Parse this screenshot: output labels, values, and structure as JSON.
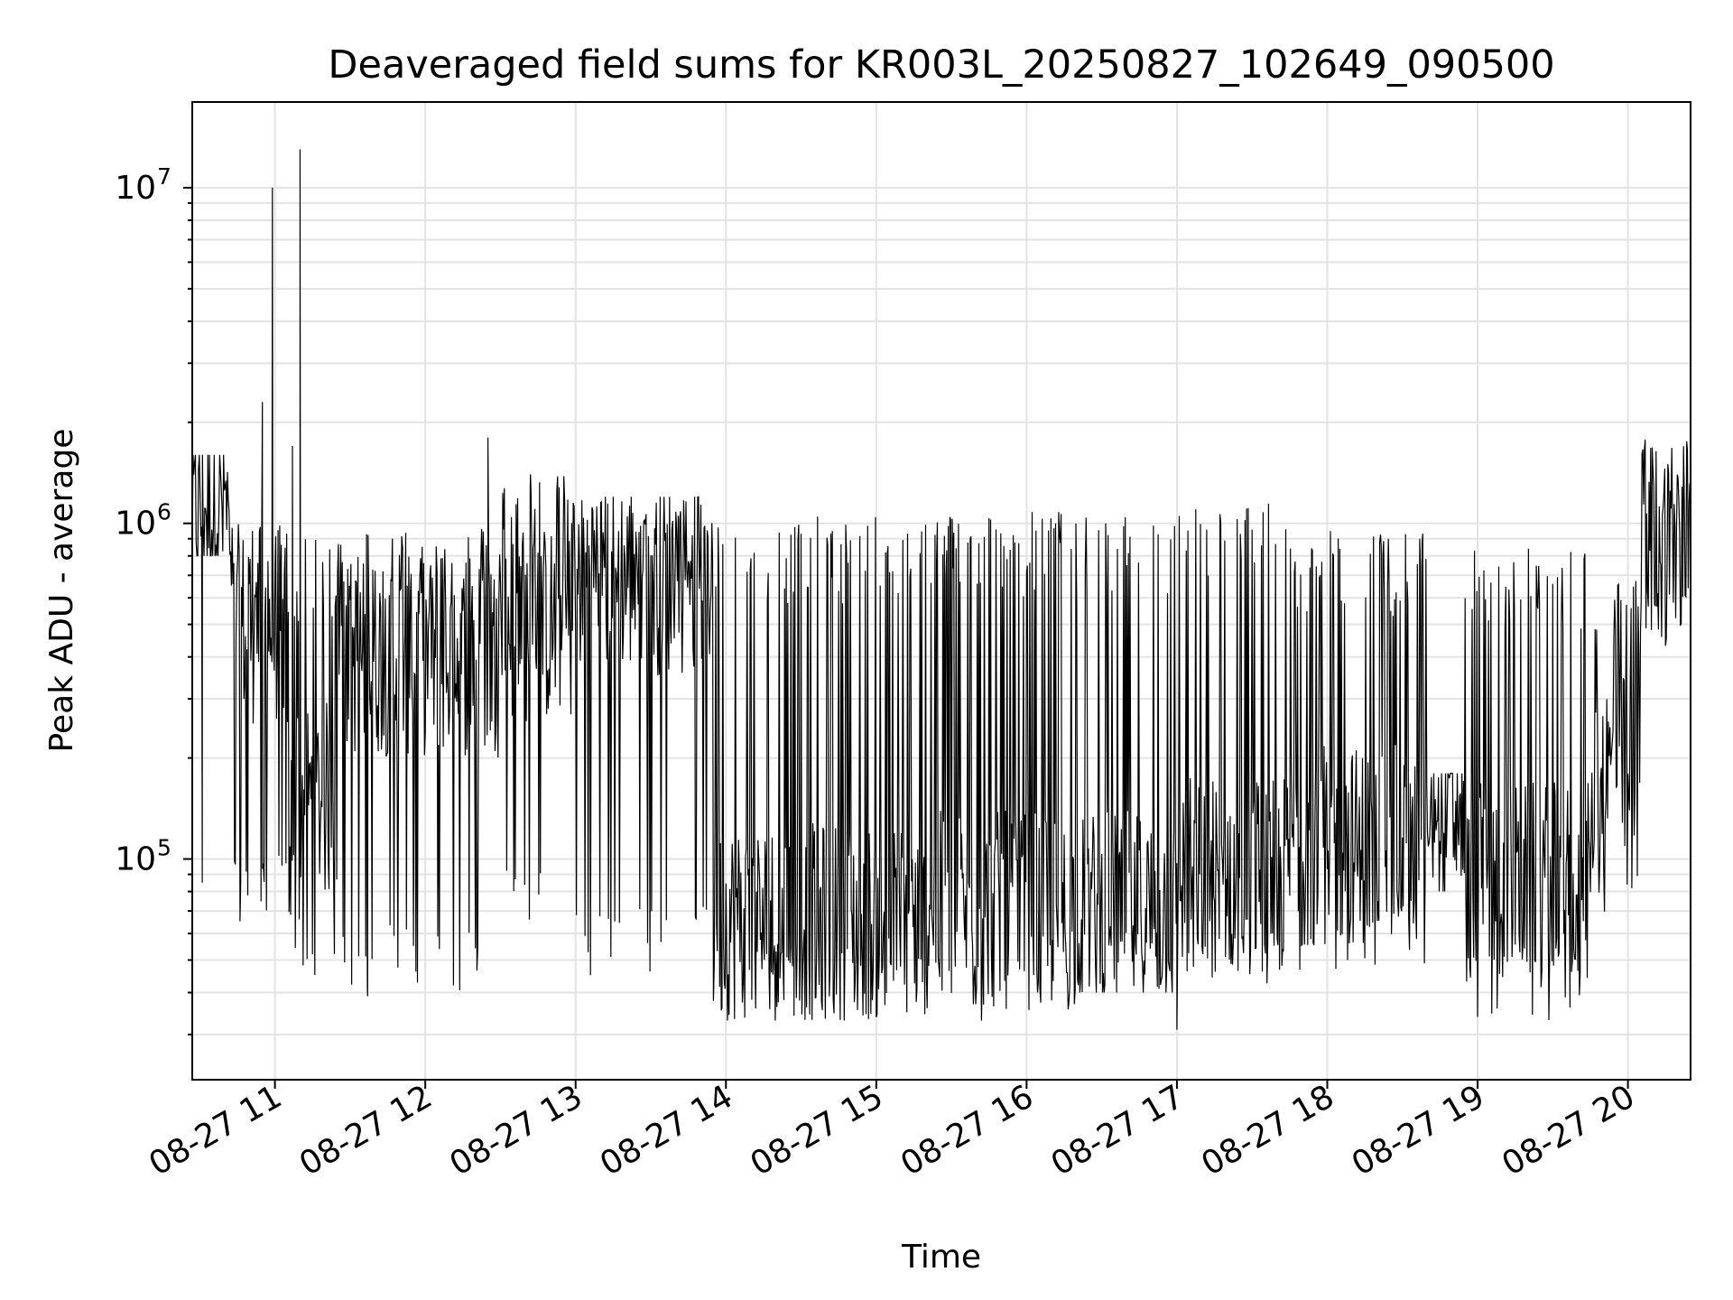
{
  "chart_data": {
    "type": "line",
    "title": "Deaveraged field sums for KR003L_20250827_102649_090500",
    "xlabel": "Time",
    "ylabel": "Peak ADU - average",
    "x_scale": "time",
    "y_scale": "log",
    "xlim": [
      "2025-08-27 10:27",
      "2025-08-27 20:25"
    ],
    "ylim": [
      22000,
      18000000
    ],
    "grid": true,
    "x_ticks": [
      "08-27 11",
      "08-27 12",
      "08-27 13",
      "08-27 14",
      "08-27 15",
      "08-27 16",
      "08-27 17",
      "08-27 18",
      "08-27 19",
      "08-27 20"
    ],
    "y_ticks": [
      {
        "value": 100000,
        "base": "10",
        "exp": "5"
      },
      {
        "value": 1000000,
        "base": "10",
        "exp": "6"
      },
      {
        "value": 10000000,
        "base": "10",
        "exp": "7"
      }
    ],
    "series": [
      {
        "color": "#000000",
        "description_segments": [
          {
            "start": "10:27",
            "end": "10:42",
            "base": 1100000,
            "low": 800000,
            "high": 1600000
          },
          {
            "start": "10:42",
            "end": "11:05",
            "base": 500000,
            "low": 65000,
            "high": 1000000
          },
          {
            "start": "11:05",
            "end": "11:25",
            "base": 150000,
            "low": 45000,
            "high": 900000
          },
          {
            "start": "11:25",
            "end": "12:30",
            "base": 400000,
            "low": 40000,
            "high": 1000000
          },
          {
            "start": "12:30",
            "end": "13:00",
            "base": 500000,
            "low": 60000,
            "high": 1400000
          },
          {
            "start": "13:00",
            "end": "13:55",
            "base": 700000,
            "low": 45000,
            "high": 1200000
          },
          {
            "start": "13:55",
            "end": "15:20",
            "base": 65000,
            "low": 33000,
            "high": 1050000
          },
          {
            "start": "15:20",
            "end": "16:20",
            "base": 70000,
            "low": 35000,
            "high": 1100000
          },
          {
            "start": "16:20",
            "end": "17:00",
            "base": 70000,
            "low": 40000,
            "high": 1050000
          },
          {
            "start": "17:00",
            "end": "17:45",
            "base": 90000,
            "low": 38000,
            "high": 1150000
          },
          {
            "start": "17:45",
            "end": "18:40",
            "base": 110000,
            "low": 45000,
            "high": 950000
          },
          {
            "start": "18:40",
            "end": "18:55",
            "base": 140000,
            "low": 80000,
            "high": 180000
          },
          {
            "start": "18:55",
            "end": "19:45",
            "base": 85000,
            "low": 33000,
            "high": 850000
          },
          {
            "start": "19:45",
            "end": "20:05",
            "base": 180000,
            "low": 60000,
            "high": 700000
          },
          {
            "start": "20:05",
            "end": "20:25",
            "base": 900000,
            "low": 400000,
            "high": 1800000
          }
        ],
        "spikes": [
          {
            "time": "10:59",
            "value": 10000000
          },
          {
            "time": "11:10",
            "value": 13000000
          },
          {
            "time": "10:55",
            "value": 2300000
          },
          {
            "time": "11:07",
            "value": 1700000
          },
          {
            "time": "12:25",
            "value": 1800000
          },
          {
            "time": "12:42",
            "value": 1400000
          },
          {
            "time": "11:37",
            "value": 39000
          },
          {
            "time": "10:31",
            "value": 85000
          },
          {
            "time": "15:42",
            "value": 33000
          },
          {
            "time": "17:00",
            "value": 31000
          }
        ]
      }
    ]
  }
}
